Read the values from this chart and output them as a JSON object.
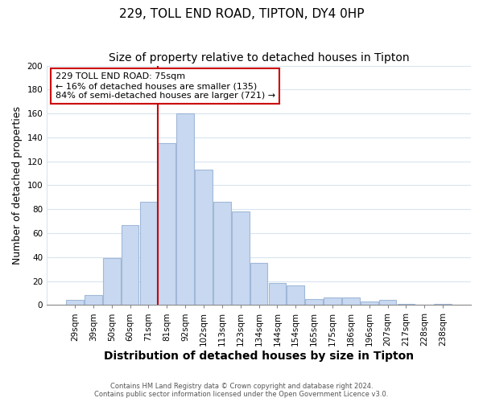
{
  "title": "229, TOLL END ROAD, TIPTON, DY4 0HP",
  "subtitle": "Size of property relative to detached houses in Tipton",
  "xlabel": "Distribution of detached houses by size in Tipton",
  "ylabel": "Number of detached properties",
  "bar_color": "#c8d8f0",
  "bar_edge_color": "#a0b8d8",
  "categories": [
    "29sqm",
    "39sqm",
    "50sqm",
    "60sqm",
    "71sqm",
    "81sqm",
    "92sqm",
    "102sqm",
    "113sqm",
    "123sqm",
    "134sqm",
    "144sqm",
    "154sqm",
    "165sqm",
    "175sqm",
    "186sqm",
    "196sqm",
    "207sqm",
    "217sqm",
    "228sqm",
    "238sqm"
  ],
  "values": [
    4,
    8,
    39,
    67,
    86,
    135,
    160,
    113,
    86,
    78,
    35,
    18,
    16,
    5,
    6,
    6,
    3,
    4,
    1,
    0,
    1
  ],
  "vline_x": 4.5,
  "vline_color": "#cc0000",
  "annotation_line1": "229 TOLL END ROAD: 75sqm",
  "annotation_line2": "← 16% of detached houses are smaller (135)",
  "annotation_line3": "84% of semi-detached houses are larger (721) →",
  "annotation_box_color": "white",
  "annotation_box_edge": "#cc0000",
  "ylim": [
    0,
    200
  ],
  "yticks": [
    0,
    20,
    40,
    60,
    80,
    100,
    120,
    140,
    160,
    180,
    200
  ],
  "footer1": "Contains HM Land Registry data © Crown copyright and database right 2024.",
  "footer2": "Contains public sector information licensed under the Open Government Licence v3.0.",
  "background_color": "#ffffff",
  "grid_color": "#d8e4f0",
  "title_fontsize": 11,
  "subtitle_fontsize": 10,
  "tick_fontsize": 7.5,
  "ylabel_fontsize": 9,
  "xlabel_fontsize": 10
}
